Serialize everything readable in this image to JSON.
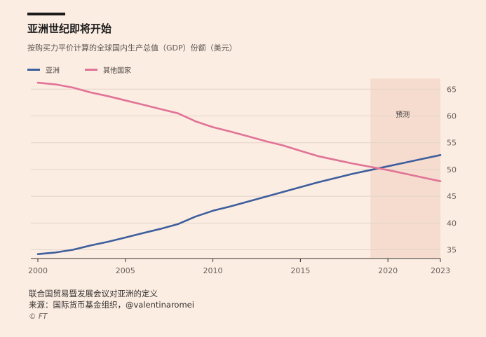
{
  "header": {
    "title": "亚洲世纪即将开始",
    "subtitle": "按购买力平价计算的全球国内生产总值（GDP）份额（美元）"
  },
  "footer": {
    "note": "联合国贸易暨发展会议对亚洲的定义",
    "source": "来源：国际货币基金组织，@valentinaromei",
    "copyright": "© FT"
  },
  "chart_data": {
    "type": "line",
    "title": "亚洲世纪即将开始",
    "subtitle": "按购买力平价计算的全球国内生产总值（GDP）份额（美元）",
    "xlabel": "",
    "ylabel": "",
    "x": [
      2000,
      2001,
      2002,
      2003,
      2004,
      2005,
      2006,
      2007,
      2008,
      2009,
      2010,
      2011,
      2012,
      2013,
      2014,
      2015,
      2016,
      2017,
      2018,
      2019,
      2020,
      2021,
      2022,
      2023
    ],
    "xlim": [
      1999.6,
      2023
    ],
    "ylim": [
      33.5,
      67
    ],
    "x_ticks": [
      2000,
      2005,
      2010,
      2015,
      2020,
      2023
    ],
    "y_ticks": [
      35,
      40,
      45,
      50,
      55,
      60,
      65
    ],
    "y_axis_position": "right",
    "grid": "horizontal",
    "legend_position": "top-left",
    "forecast_region": {
      "label": "预测",
      "x_start": 2019,
      "x_end": 2023,
      "color": "#f6dccf"
    },
    "series": [
      {
        "name": "亚洲",
        "color": "#3d5e9c",
        "values": [
          34.2,
          34.5,
          35.0,
          35.8,
          36.5,
          37.3,
          38.1,
          38.9,
          39.8,
          41.2,
          42.3,
          43.1,
          44.0,
          44.9,
          45.8,
          46.7,
          47.6,
          48.4,
          49.2,
          49.9,
          50.6,
          51.3,
          52.0,
          52.7
        ]
      },
      {
        "name": "其他国家",
        "color": "#e07396",
        "values": [
          66.2,
          65.9,
          65.3,
          64.4,
          63.7,
          62.9,
          62.1,
          61.3,
          60.5,
          59.0,
          57.9,
          57.1,
          56.2,
          55.3,
          54.5,
          53.5,
          52.5,
          51.8,
          51.1,
          50.5,
          49.9,
          49.2,
          48.5,
          47.8
        ]
      }
    ]
  }
}
